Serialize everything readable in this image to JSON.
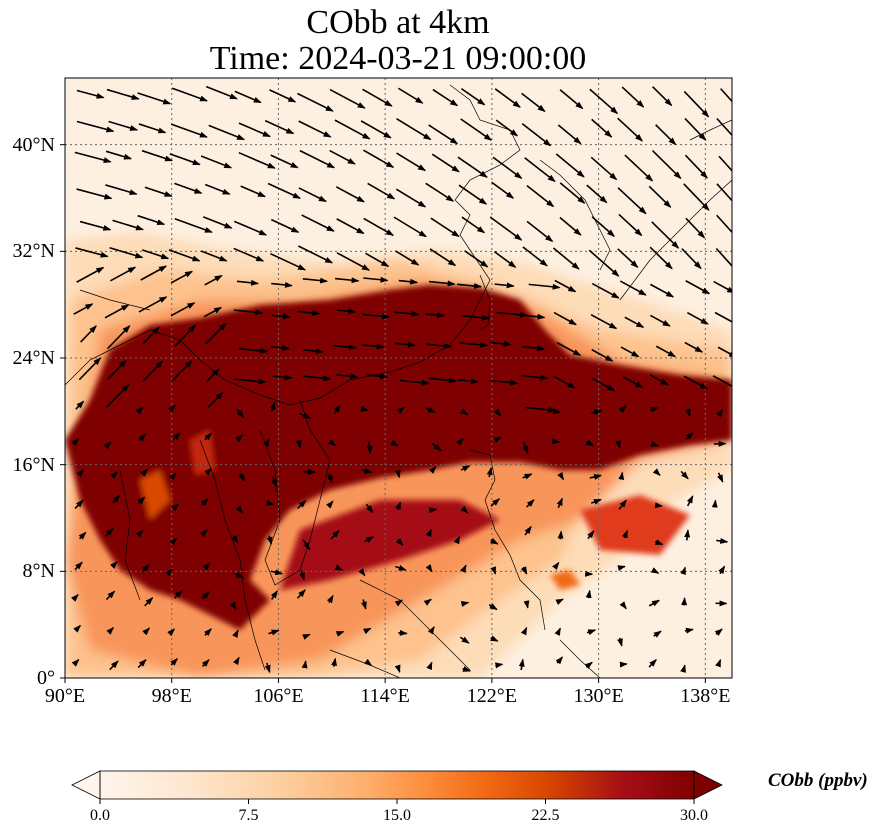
{
  "figure": {
    "title_line1": "CObb at 4km",
    "title_line2": "Time: 2024-03-21 09:00:00"
  },
  "map": {
    "lon_range": [
      90,
      140
    ],
    "lat_range": [
      0,
      45
    ],
    "lon_ticks": [
      {
        "value": 90,
        "label": "90°E"
      },
      {
        "value": 98,
        "label": "98°E"
      },
      {
        "value": 106,
        "label": "106°E"
      },
      {
        "value": 114,
        "label": "114°E"
      },
      {
        "value": 122,
        "label": "122°E"
      },
      {
        "value": 130,
        "label": "130°E"
      },
      {
        "value": 138,
        "label": "138°E"
      }
    ],
    "lat_ticks": [
      {
        "value": 0,
        "label": "0°"
      },
      {
        "value": 8,
        "label": "8°N"
      },
      {
        "value": 16,
        "label": "16°N"
      },
      {
        "value": 24,
        "label": "24°N"
      },
      {
        "value": 32,
        "label": "32°N"
      },
      {
        "value": 40,
        "label": "40°N"
      }
    ],
    "gridlines": true,
    "wind_vectors": true
  },
  "colorbar": {
    "label": "CObb (ppbv)",
    "min": 0,
    "max": 30,
    "extend": "both",
    "ticks": [
      "0.0",
      "7.5",
      "15.0",
      "22.5",
      "30.0"
    ],
    "colors": [
      "#fff5eb",
      "#fee6ce",
      "#fdd0a2",
      "#fdae6b",
      "#fd8d3c",
      "#f16913",
      "#d94801",
      "#a50f15",
      "#7f0000"
    ]
  }
}
